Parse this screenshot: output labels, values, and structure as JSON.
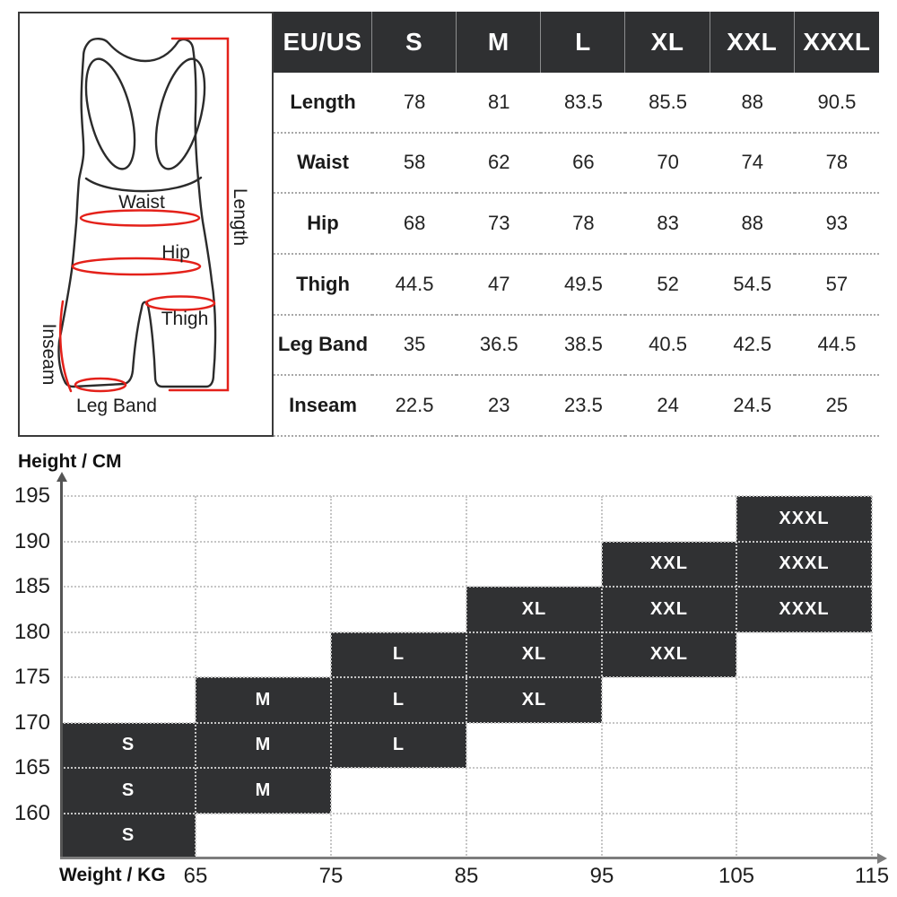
{
  "diagram": {
    "labels": {
      "waist": "Waist",
      "hip": "Hip",
      "thigh": "Thigh",
      "leg_band": "Leg Band",
      "inseam": "Inseam",
      "length": "Length"
    },
    "sketch_color": "#2b2b2b",
    "accent_color": "#e4211a"
  },
  "chart_data": [
    {
      "type": "table",
      "columns": [
        "EU/US",
        "S",
        "M",
        "L",
        "XL",
        "XXL",
        "XXXL"
      ],
      "rows": [
        {
          "label": "Length",
          "values": [
            "78",
            "81",
            "83.5",
            "85.5",
            "88",
            "90.5"
          ]
        },
        {
          "label": "Waist",
          "values": [
            "58",
            "62",
            "66",
            "70",
            "74",
            "78"
          ]
        },
        {
          "label": "Hip",
          "values": [
            "68",
            "73",
            "78",
            "83",
            "88",
            "93"
          ]
        },
        {
          "label": "Thigh",
          "values": [
            "44.5",
            "47",
            "49.5",
            "52",
            "54.5",
            "57"
          ]
        },
        {
          "label": "Leg Band",
          "values": [
            "35",
            "36.5",
            "38.5",
            "40.5",
            "42.5",
            "44.5"
          ]
        },
        {
          "label": "Inseam",
          "values": [
            "22.5",
            "23",
            "23.5",
            "24",
            "24.5",
            "25"
          ]
        }
      ],
      "header_bg": "#2f3032",
      "header_text_color": "#ffffff"
    },
    {
      "type": "heatmap",
      "ylabel": "Height / CM",
      "xlabel": "Weight / KG",
      "y_ticks": [
        "195",
        "190",
        "185",
        "180",
        "175",
        "170",
        "165",
        "160"
      ],
      "x_ticks": [
        "65",
        "75",
        "85",
        "95",
        "105",
        "115"
      ],
      "y_range": [
        155,
        195
      ],
      "grid": "dotted",
      "legend_position": "none",
      "cell_color": "#303133",
      "cell_text_color": "#ffffff",
      "cells": [
        [
          "",
          "",
          "",
          "",
          "",
          "XXXL"
        ],
        [
          "",
          "",
          "",
          "",
          "XXL",
          "XXXL"
        ],
        [
          "",
          "",
          "",
          "XL",
          "XXL",
          "XXXL"
        ],
        [
          "",
          "",
          "L",
          "XL",
          "XXL",
          ""
        ],
        [
          "",
          "M",
          "L",
          "XL",
          "",
          ""
        ],
        [
          "S",
          "M",
          "L",
          "",
          "",
          ""
        ],
        [
          "S",
          "M",
          "",
          "",
          "",
          ""
        ],
        [
          "S",
          "",
          "",
          "",
          "",
          ""
        ]
      ]
    }
  ]
}
